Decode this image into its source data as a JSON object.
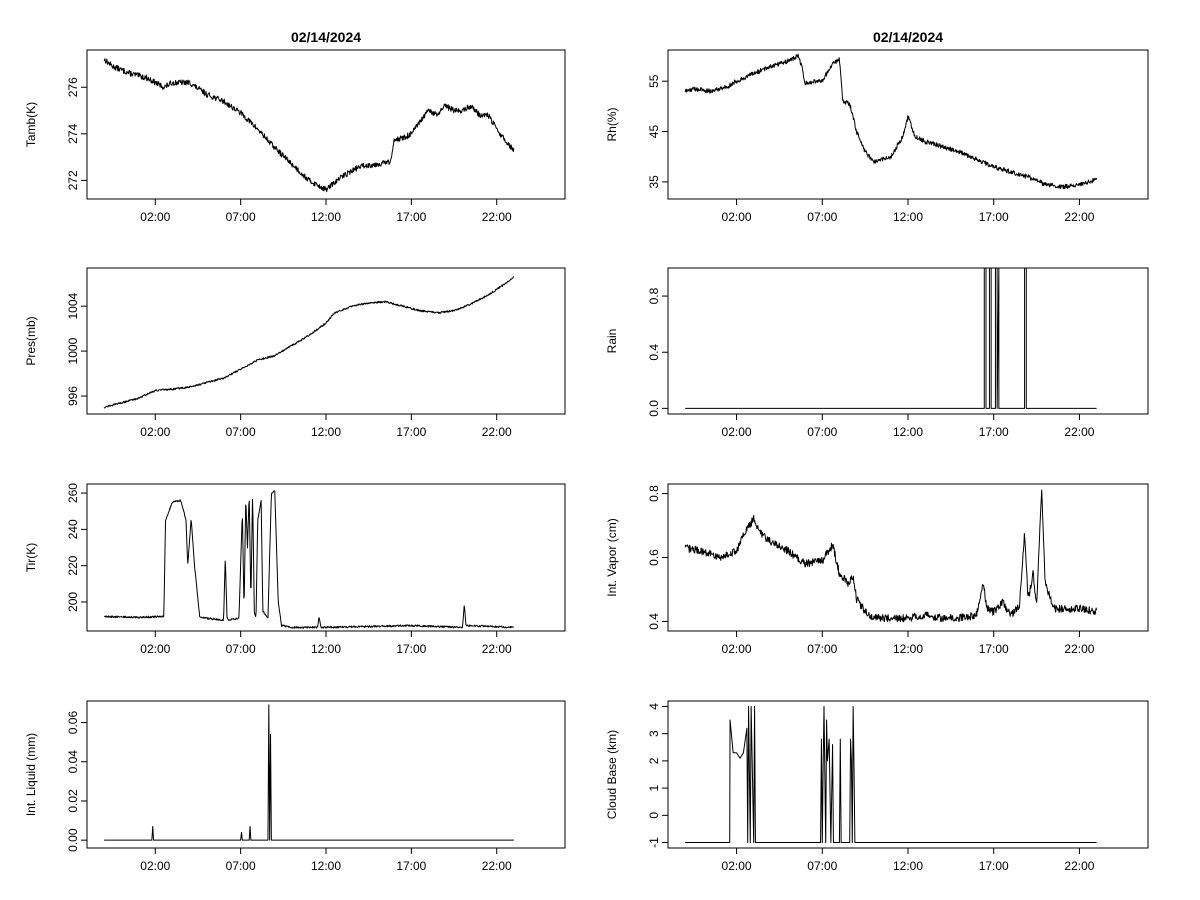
{
  "chart_data": [
    {
      "type": "line",
      "panel": "tamb",
      "title": "02/14/2024",
      "xlabel": "",
      "ylabel": "Tamb(K)",
      "xlim": [
        -2,
        26
      ],
      "ylim": [
        271.2,
        277.6
      ],
      "xticks": [
        2,
        7,
        12,
        17,
        22
      ],
      "xtick_labels": [
        "02:00",
        "07:00",
        "12:00",
        "17:00",
        "22:00"
      ],
      "yticks": [
        272,
        274,
        276
      ],
      "ytick_labels": [
        "272",
        "274",
        "276"
      ],
      "noise": 0.12,
      "grid": false,
      "x": [
        -1.0,
        -0.5,
        0.5,
        1.5,
        2.5,
        3.0,
        4.0,
        5.0,
        6.0,
        7.0,
        8.0,
        9.0,
        10.0,
        11.0,
        12.0,
        13.0,
        14.0,
        15.0,
        15.8,
        16.0,
        16.5,
        17.0,
        17.5,
        18.0,
        18.5,
        19.0,
        19.5,
        20.0,
        20.5,
        21.0,
        21.5,
        22.0,
        22.5,
        23.0
      ],
      "y": [
        277.2,
        276.9,
        276.6,
        276.4,
        276.0,
        276.2,
        276.2,
        275.7,
        275.4,
        274.9,
        274.2,
        273.4,
        272.7,
        272.0,
        271.6,
        272.2,
        272.6,
        272.7,
        272.8,
        273.8,
        273.8,
        274.0,
        274.5,
        275.0,
        274.8,
        275.2,
        275.0,
        275.0,
        275.2,
        274.8,
        274.8,
        274.2,
        273.7,
        273.3
      ]
    },
    {
      "type": "line",
      "panel": "rh",
      "title": "02/14/2024",
      "xlabel": "",
      "ylabel": "Rh(%)",
      "xlim": [
        -2,
        26
      ],
      "ylim": [
        31.6,
        61.2
      ],
      "xticks": [
        2,
        7,
        12,
        17,
        22
      ],
      "xtick_labels": [
        "02:00",
        "07:00",
        "12:00",
        "17:00",
        "22:00"
      ],
      "yticks": [
        35,
        45,
        55
      ],
      "ytick_labels": [
        "35",
        "45",
        "55"
      ],
      "noise": 0.45,
      "grid": false,
      "x": [
        -1.0,
        -0.5,
        0.5,
        1.5,
        2.0,
        3.0,
        4.0,
        5.0,
        5.6,
        5.8,
        6.0,
        6.5,
        7.0,
        7.5,
        8.0,
        8.2,
        8.6,
        9.0,
        9.5,
        10.0,
        11.0,
        11.7,
        12.0,
        12.4,
        13.0,
        14.0,
        15.0,
        16.0,
        17.0,
        18.0,
        19.0,
        20.0,
        21.0,
        22.0,
        23.0
      ],
      "y": [
        53.0,
        53.5,
        53.0,
        54.0,
        55.0,
        56.5,
        58.0,
        59.0,
        60.0,
        58.0,
        54.5,
        55.0,
        55.0,
        58.0,
        59.5,
        51.0,
        50.5,
        45.0,
        41.0,
        39.0,
        40.0,
        44.0,
        48.0,
        44.0,
        43.0,
        42.0,
        41.0,
        39.5,
        38.0,
        37.0,
        36.0,
        34.5,
        34.0,
        34.5,
        35.5
      ]
    },
    {
      "type": "line",
      "panel": "pres",
      "title": "",
      "xlabel": "",
      "ylabel": "Pres(mb)",
      "xlim": [
        -2,
        26
      ],
      "ylim": [
        994.4,
        1007.4
      ],
      "xticks": [
        2,
        7,
        12,
        17,
        22
      ],
      "xtick_labels": [
        "02:00",
        "07:00",
        "12:00",
        "17:00",
        "22:00"
      ],
      "yticks": [
        996,
        1000,
        1004
      ],
      "ytick_labels": [
        "996",
        "1000",
        "1004"
      ],
      "noise": 0.08,
      "grid": false,
      "x": [
        -1.0,
        0.0,
        1.0,
        2.0,
        3.0,
        4.0,
        5.0,
        6.0,
        7.0,
        8.0,
        9.0,
        10.0,
        11.0,
        12.0,
        12.5,
        13.5,
        14.5,
        15.5,
        16.5,
        17.5,
        18.5,
        19.5,
        20.5,
        21.5,
        22.5,
        23.0
      ],
      "y": [
        995.0,
        995.4,
        995.8,
        996.5,
        996.6,
        996.8,
        997.2,
        997.6,
        998.4,
        999.2,
        999.6,
        1000.5,
        1001.4,
        1002.5,
        1003.4,
        1004.0,
        1004.3,
        1004.4,
        1004.0,
        1003.6,
        1003.4,
        1003.6,
        1004.2,
        1005.0,
        1006.0,
        1006.6
      ]
    },
    {
      "type": "line",
      "panel": "rain",
      "title": "",
      "xlabel": "",
      "ylabel": "Rain",
      "xlim": [
        -2,
        26
      ],
      "ylim": [
        -0.04,
        1.0
      ],
      "xticks": [
        2,
        7,
        12,
        17,
        22
      ],
      "xtick_labels": [
        "02:00",
        "07:00",
        "12:00",
        "17:00",
        "22:00"
      ],
      "yticks": [
        0.0,
        0.4,
        0.8
      ],
      "ytick_labels": [
        "0.0",
        "0.4",
        "0.8"
      ],
      "noise": 0.0,
      "grid": false,
      "x": [
        -1.0,
        16.45,
        16.45,
        16.55,
        16.55,
        16.75,
        16.75,
        16.85,
        16.85,
        17.1,
        17.1,
        17.2,
        17.2,
        17.3,
        17.3,
        18.8,
        18.8,
        18.9,
        18.9,
        23.0
      ],
      "y": [
        0.0,
        0.0,
        1.0,
        1.0,
        0.0,
        0.0,
        1.0,
        1.0,
        0.0,
        0.0,
        1.0,
        1.0,
        0.0,
        1.0,
        0.0,
        0.0,
        1.0,
        1.0,
        0.0,
        0.0
      ]
    },
    {
      "type": "line",
      "panel": "tir",
      "title": "",
      "xlabel": "",
      "ylabel": "Tir(K)",
      "xlim": [
        -2,
        26
      ],
      "ylim": [
        184,
        265
      ],
      "xticks": [
        2,
        7,
        12,
        17,
        22
      ],
      "xtick_labels": [
        "02:00",
        "07:00",
        "12:00",
        "17:00",
        "22:00"
      ],
      "yticks": [
        200,
        220,
        240,
        260
      ],
      "ytick_labels": [
        "200",
        "220",
        "240",
        "260"
      ],
      "noise": 0.5,
      "grid": false,
      "x": [
        -1.0,
        1.0,
        2.5,
        2.6,
        3.0,
        3.5,
        3.8,
        3.9,
        4.1,
        4.3,
        4.6,
        5.0,
        6.0,
        6.1,
        6.2,
        6.3,
        6.9,
        7.1,
        7.2,
        7.3,
        7.4,
        7.5,
        7.6,
        7.7,
        7.8,
        7.9,
        8.0,
        8.2,
        8.3,
        8.6,
        8.8,
        9.0,
        9.2,
        9.4,
        10.0,
        11.5,
        11.6,
        11.7,
        12.0,
        17.0,
        20.0,
        20.1,
        20.2,
        23.0
      ],
      "y": [
        192.0,
        191.5,
        192.0,
        245.0,
        255.0,
        256.0,
        245.0,
        220.0,
        246.0,
        220.0,
        192.0,
        191.0,
        190.0,
        225.0,
        192.0,
        190.0,
        191.0,
        250.0,
        195.0,
        258.0,
        230.0,
        260.0,
        200.0,
        261.0,
        195.0,
        191.0,
        245.0,
        256.0,
        195.0,
        191.0,
        260.0,
        261.0,
        200.0,
        187.0,
        186.0,
        186.0,
        192.0,
        186.0,
        186.0,
        187.0,
        186.0,
        199.0,
        187.0,
        186.0
      ]
    },
    {
      "type": "line",
      "panel": "vapor",
      "title": "",
      "xlabel": "",
      "ylabel": "Int. Vapor (cm)",
      "xlim": [
        -2,
        26
      ],
      "ylim": [
        0.37,
        0.83
      ],
      "xticks": [
        2,
        7,
        12,
        17,
        22
      ],
      "xtick_labels": [
        "02:00",
        "07:00",
        "12:00",
        "17:00",
        "22:00"
      ],
      "yticks": [
        0.4,
        0.6,
        0.8
      ],
      "ytick_labels": [
        "0.4",
        "0.6",
        "0.8"
      ],
      "noise": 0.012,
      "grid": false,
      "x": [
        -1.0,
        0.0,
        1.0,
        2.0,
        2.5,
        3.0,
        3.5,
        4.0,
        5.0,
        6.0,
        7.0,
        7.6,
        8.0,
        8.5,
        8.8,
        9.0,
        9.5,
        10.0,
        11.0,
        12.0,
        13.0,
        14.0,
        15.0,
        16.0,
        16.4,
        16.6,
        17.0,
        17.5,
        18.0,
        18.5,
        18.8,
        19.0,
        19.3,
        19.5,
        19.8,
        20.0,
        20.5,
        21.0,
        22.0,
        23.0
      ],
      "y": [
        0.63,
        0.62,
        0.6,
        0.62,
        0.68,
        0.72,
        0.67,
        0.65,
        0.62,
        0.58,
        0.59,
        0.64,
        0.55,
        0.52,
        0.54,
        0.47,
        0.43,
        0.41,
        0.41,
        0.41,
        0.42,
        0.41,
        0.41,
        0.42,
        0.52,
        0.44,
        0.43,
        0.46,
        0.42,
        0.45,
        0.68,
        0.47,
        0.55,
        0.45,
        0.82,
        0.52,
        0.44,
        0.44,
        0.44,
        0.43
      ]
    },
    {
      "type": "line",
      "panel": "liquid",
      "title": "",
      "xlabel": "",
      "ylabel": "Int. Liquid (mm)",
      "xlim": [
        -2,
        26
      ],
      "ylim": [
        -0.004,
        0.071
      ],
      "xticks": [
        2,
        7,
        12,
        17,
        22
      ],
      "xtick_labels": [
        "02:00",
        "07:00",
        "12:00",
        "17:00",
        "22:00"
      ],
      "yticks": [
        0.0,
        0.02,
        0.04,
        0.06
      ],
      "ytick_labels": [
        "0.00",
        "0.02",
        "0.04",
        "0.06"
      ],
      "noise": 0.0,
      "grid": false,
      "x": [
        -1.0,
        1.8,
        1.85,
        1.9,
        7.0,
        7.05,
        7.1,
        7.5,
        7.55,
        7.6,
        8.6,
        8.65,
        8.7,
        8.75,
        8.8,
        8.85,
        23.0
      ],
      "y": [
        0.0,
        0.0,
        0.007,
        0.0,
        0.0,
        0.004,
        0.0,
        0.0,
        0.007,
        0.0,
        0.0,
        0.069,
        0.0,
        0.054,
        0.0,
        0.0,
        0.0
      ]
    },
    {
      "type": "line",
      "panel": "cloud",
      "title": "",
      "xlabel": "",
      "ylabel": "Cloud Base (km)",
      "xlim": [
        -2,
        26
      ],
      "ylim": [
        -1.2,
        4.2
      ],
      "xticks": [
        2,
        7,
        12,
        17,
        22
      ],
      "xtick_labels": [
        "02:00",
        "07:00",
        "12:00",
        "17:00",
        "22:00"
      ],
      "yticks": [
        -1,
        0,
        1,
        2,
        3,
        4
      ],
      "ytick_labels": [
        "-1",
        "0",
        "1",
        "2",
        "3",
        "4"
      ],
      "noise": 0.0,
      "grid": false,
      "x": [
        -1.0,
        1.6,
        1.62,
        1.8,
        2.0,
        2.2,
        2.4,
        2.6,
        2.65,
        2.7,
        2.8,
        2.85,
        3.0,
        3.05,
        3.1,
        3.2,
        3.25,
        6.9,
        6.95,
        7.0,
        7.05,
        7.1,
        7.2,
        7.25,
        7.3,
        7.4,
        7.5,
        7.6,
        7.65,
        7.7,
        8.0,
        8.05,
        8.1,
        8.6,
        8.65,
        8.7,
        8.75,
        8.8,
        8.85,
        8.9,
        23.0
      ],
      "y": [
        -1.0,
        -1.0,
        3.5,
        2.3,
        2.3,
        2.1,
        2.3,
        3.2,
        -1.0,
        4.0,
        -1.0,
        4.0,
        -1.0,
        4.0,
        -1.0,
        -1.0,
        -1.0,
        -1.0,
        2.8,
        -1.0,
        1.8,
        4.0,
        -1.0,
        3.5,
        2.0,
        2.8,
        -1.0,
        2.6,
        -1.0,
        -1.0,
        -1.0,
        2.8,
        -1.0,
        -1.0,
        2.8,
        2.0,
        -1.0,
        4.0,
        1.8,
        -1.0,
        -1.0
      ]
    }
  ]
}
